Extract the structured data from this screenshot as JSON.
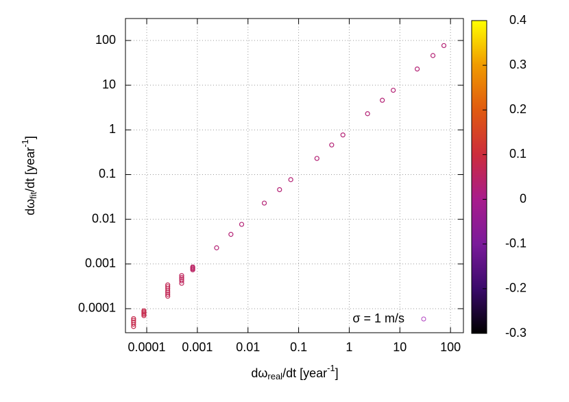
{
  "chart_data": {
    "type": "scatter",
    "xlabel": [
      "dω",
      "real",
      "/dt [year",
      "-1",
      "]"
    ],
    "ylabel": [
      "dω",
      "fit",
      "/dt [year",
      "-1",
      "]"
    ],
    "xscale": "log",
    "yscale": "log",
    "grid": true,
    "legend": "bottom-right",
    "xlim": [
      3.8e-05,
      180
    ],
    "ylim": [
      2.9e-05,
      310
    ],
    "xticks": [
      0.0001,
      0.001,
      0.01,
      0.1,
      1,
      10,
      100
    ],
    "yticks": [
      0.0001,
      0.001,
      0.01,
      0.1,
      1,
      10,
      100
    ],
    "clim": [
      -0.3,
      0.4
    ],
    "cticks": [
      -0.3,
      -0.2,
      -0.1,
      0,
      0.1,
      0.2,
      0.3,
      0.4
    ],
    "palette": [
      "#000000",
      "#3a0a6a",
      "#7a1a9a",
      "#a81c8c",
      "#cc2c3c",
      "#e05a10",
      "#f09a00",
      "#ffff00"
    ],
    "series": [
      {
        "name": "σ = 1 m/s",
        "color": "#b040c0",
        "x": [
          5.5e-05,
          5.5e-05,
          5.5e-05,
          5.5e-05,
          5.5e-05,
          8.8e-05,
          8.8e-05,
          8.8e-05,
          8.8e-05,
          8.8e-05,
          0.00026,
          0.00026,
          0.00026,
          0.00026,
          0.00026,
          0.00026,
          0.00026,
          0.00049,
          0.00049,
          0.00049,
          0.00049,
          0.00049,
          0.00081,
          0.00081,
          0.00081,
          0.00081,
          0.0024,
          0.0046,
          0.0075,
          0.021,
          0.042,
          0.07,
          0.23,
          0.45,
          0.75,
          2.3,
          4.5,
          7.4,
          22,
          45,
          74
        ],
        "values": [
          4e-05,
          4.5e-05,
          5e-05,
          5.5e-05,
          6e-05,
          7e-05,
          7.5e-05,
          8e-05,
          8.5e-05,
          9e-05,
          0.00019,
          0.00021,
          0.00023,
          0.00025,
          0.00028,
          0.00031,
          0.00034,
          0.00037,
          0.00042,
          0.00046,
          0.0005,
          0.00055,
          0.00074,
          0.00078,
          0.00082,
          0.00086,
          0.0023,
          0.0046,
          0.0077,
          0.023,
          0.046,
          0.077,
          0.23,
          0.46,
          0.77,
          2.3,
          4.6,
          7.7,
          23,
          46,
          77
        ],
        "z": [
          0.08,
          0.08,
          0.08,
          0.08,
          0.08,
          0.08,
          0.08,
          0.08,
          0.08,
          0.08,
          0.07,
          0.07,
          0.07,
          0.07,
          0.07,
          0.07,
          0.07,
          0.06,
          0.06,
          0.06,
          0.06,
          0.06,
          0.05,
          0.05,
          0.05,
          0.05,
          0.03,
          0.03,
          0.03,
          0.03,
          0.03,
          0.03,
          0.03,
          0.03,
          0.03,
          0.03,
          0.03,
          0.03,
          0.03,
          0.03,
          0.03
        ]
      }
    ]
  }
}
